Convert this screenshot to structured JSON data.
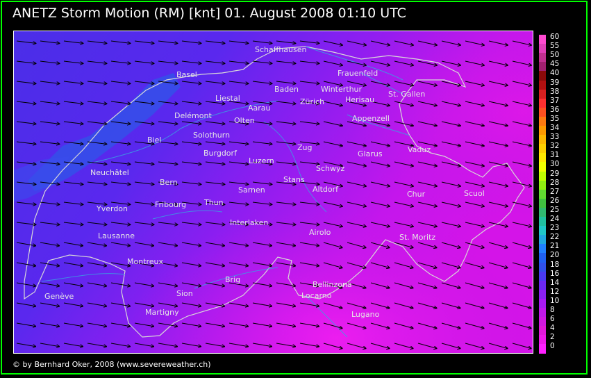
{
  "title": "ANETZ Storm Motion (RM) [knt]    01. August 2008 01:10 UTC",
  "copyright": "© by Bernhard Oker, 2008 (www.severeweather.ch)",
  "legend": {
    "labels": [
      "60",
      "55",
      "50",
      "45",
      "40",
      "39",
      "38",
      "37",
      "36",
      "35",
      "34",
      "33",
      "32",
      "31",
      "30",
      "29",
      "28",
      "27",
      "26",
      "25",
      "24",
      "23",
      "22",
      "21",
      "20",
      "18",
      "16",
      "14",
      "12",
      "10",
      "8",
      "6",
      "4",
      "2",
      "0"
    ],
    "colors": [
      "#ff4ad0",
      "#e13fb8",
      "#c03090",
      "#a02070",
      "#8a0a0a",
      "#b01010",
      "#d82020",
      "#ff3030",
      "#ff5020",
      "#ff7a10",
      "#ff9a00",
      "#ffb800",
      "#ffd000",
      "#ffe800",
      "#f0ff00",
      "#c0ff00",
      "#90ee10",
      "#60d830",
      "#40c040",
      "#30b870",
      "#20c0a0",
      "#20c8c8",
      "#20a8e0",
      "#2080ff",
      "#2060f0",
      "#3050e8",
      "#4a3af0",
      "#6a28f0",
      "#8a20f0",
      "#a81af0",
      "#c018e8",
      "#d018e0",
      "#e018d8",
      "#ee18e8",
      "#ff20ff"
    ]
  },
  "cities": [
    {
      "name": "Schaffhausen"
    },
    {
      "name": "Basel"
    },
    {
      "name": "Frauenfeld"
    },
    {
      "name": "Baden"
    },
    {
      "name": "Winterthur"
    },
    {
      "name": "Liestal"
    },
    {
      "name": "St. Gallen"
    },
    {
      "name": "Zürich"
    },
    {
      "name": "Herisau"
    },
    {
      "name": "Aarau"
    },
    {
      "name": "Delémont"
    },
    {
      "name": "Olten"
    },
    {
      "name": "Appenzell"
    },
    {
      "name": "Solothurn"
    },
    {
      "name": "Biel"
    },
    {
      "name": "Zug"
    },
    {
      "name": "Vaduz"
    },
    {
      "name": "Burgdorf"
    },
    {
      "name": "Luzern"
    },
    {
      "name": "Glarus"
    },
    {
      "name": "Neuchâtel"
    },
    {
      "name": "Schwyz"
    },
    {
      "name": "Bern"
    },
    {
      "name": "Stans"
    },
    {
      "name": "Sarnen"
    },
    {
      "name": "Altdorf"
    },
    {
      "name": "Chur"
    },
    {
      "name": "Scuol"
    },
    {
      "name": "Thun"
    },
    {
      "name": "Fribourg"
    },
    {
      "name": "Yverdon"
    },
    {
      "name": "Interlaken"
    },
    {
      "name": "Airolo"
    },
    {
      "name": "Lausanne"
    },
    {
      "name": "St. Moritz"
    },
    {
      "name": "Montreux"
    },
    {
      "name": "Brig"
    },
    {
      "name": "Bellinzona"
    },
    {
      "name": "Sion"
    },
    {
      "name": "Genève"
    },
    {
      "name": "Locarno"
    },
    {
      "name": "Martigny"
    },
    {
      "name": "Lugano"
    }
  ]
}
